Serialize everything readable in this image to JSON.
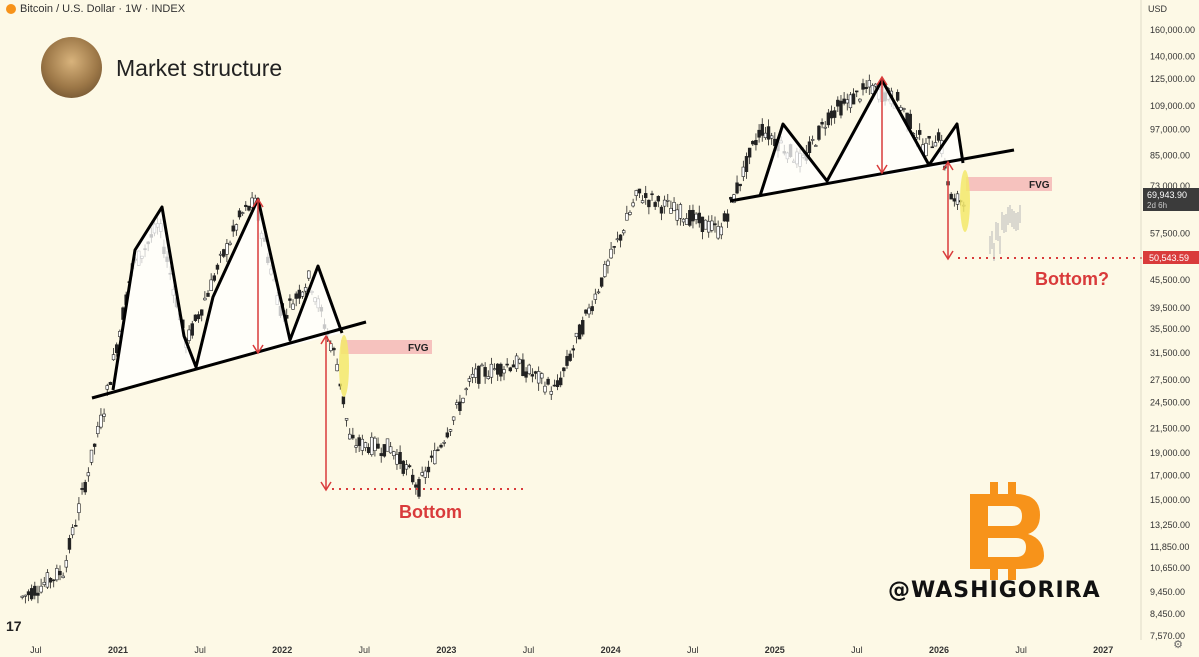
{
  "header": {
    "symbol_line": "Bitcoin / U.S. Dollar · 1W · INDEX"
  },
  "title": "Market structure",
  "handle": "@WASHIGORIRA",
  "currency": "USD",
  "colors": {
    "background": "#fdf9e6",
    "red": "#d93b3b",
    "fvg": "#f4b9b6",
    "highlight": "#f3e96a",
    "bitcoin": "#f7931a"
  },
  "icons": {
    "avatar": "avatar",
    "bitcoin_logo": "bitcoin-icon",
    "tradingview_logo": "tradingview-icon",
    "settings": "gear-icon"
  },
  "chart_data": {
    "type": "candlestick",
    "scale": "log",
    "y_ticks": [
      "160,000.00",
      "140,000.00",
      "125,000.00",
      "109,000.00",
      "97,000.00",
      "85,000.00",
      "73,000.00",
      "57,500.00",
      "51,000.00",
      "45,500.00",
      "39,500.00",
      "35,500.00",
      "31,500.00",
      "27,500.00",
      "24,500.00",
      "21,500.00",
      "19,000.00",
      "17,000.00",
      "15,000.00",
      "13,250.00",
      "11,850.00",
      "10,650.00",
      "9,450.00",
      "8,450.00",
      "7,570.00"
    ],
    "x_ticks": [
      "Jul",
      "2021",
      "Jul",
      "2022",
      "Jul",
      "2023",
      "Jul",
      "2024",
      "Jul",
      "2025",
      "Jul",
      "2026",
      "Jul",
      "2027"
    ],
    "current_price": "69,943.90",
    "countdown": "2d 6h",
    "marked_level": "50,543.59",
    "price_path": [
      [
        "2020-06",
        9200
      ],
      [
        "2020-09",
        10500
      ],
      [
        "2020-12",
        24000
      ],
      [
        "2021-02",
        48000
      ],
      [
        "2021-04",
        60000
      ],
      [
        "2021-06",
        33000
      ],
      [
        "2021-08",
        46000
      ],
      [
        "2021-10",
        63000
      ],
      [
        "2021-11",
        67000
      ],
      [
        "2022-01",
        38000
      ],
      [
        "2022-03",
        46000
      ],
      [
        "2022-05",
        30000
      ],
      [
        "2022-06",
        20000
      ],
      [
        "2022-09",
        19500
      ],
      [
        "2022-11",
        16000
      ],
      [
        "2023-03",
        28000
      ],
      [
        "2023-06",
        30000
      ],
      [
        "2023-09",
        26000
      ],
      [
        "2023-12",
        43000
      ],
      [
        "2024-03",
        70000
      ],
      [
        "2024-06",
        64000
      ],
      [
        "2024-09",
        58000
      ],
      [
        "2024-12",
        98000
      ],
      [
        "2025-03",
        82000
      ],
      [
        "2025-05",
        105000
      ],
      [
        "2025-08",
        120000
      ],
      [
        "2025-10",
        112000
      ],
      [
        "2025-12",
        88000
      ],
      [
        "2026-01",
        95000
      ],
      [
        "2026-02",
        66000
      ],
      [
        "2026-03",
        69943.9
      ]
    ],
    "annotations": [
      {
        "label": "FVG",
        "period": "2022"
      },
      {
        "label": "Bottom",
        "period": "2022"
      },
      {
        "label": "FVG",
        "period": "2026"
      },
      {
        "label": "Bottom?",
        "period": "2026"
      }
    ]
  }
}
